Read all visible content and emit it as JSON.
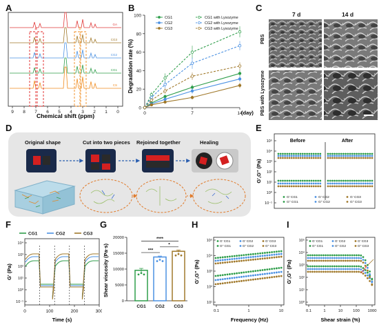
{
  "labels": {
    "A": "A",
    "B": "B",
    "C": "C",
    "D": "D",
    "E": "E",
    "F": "F",
    "G": "G",
    "H": "H",
    "I": "I"
  },
  "panelA": {
    "xlabel": "Chemical shift (ppm)",
    "xticks": [
      "9",
      "8",
      "7",
      "6",
      "5",
      "4",
      "3",
      "2",
      "1",
      "0"
    ],
    "ann1": "a",
    "ann2": "b",
    "traces": [
      {
        "name": "GA",
        "color": "#e03a3a"
      },
      {
        "name": "CG3",
        "color": "#a0782a"
      },
      {
        "name": "CG2",
        "color": "#4a90e2"
      },
      {
        "name": "CG1",
        "color": "#2e9d4a"
      },
      {
        "name": "CS",
        "color": "#f08a1c"
      }
    ]
  },
  "panelB": {
    "chart_data": {
      "type": "line",
      "x": [
        0,
        1,
        3,
        7,
        14
      ],
      "xticks": [
        "0",
        "7",
        "14"
      ],
      "xunit": "(day)",
      "ylabel": "Degradation rate (%)",
      "ylim": [
        0,
        100
      ],
      "yticks": [
        "0",
        "20",
        "40",
        "60",
        "80",
        "100"
      ],
      "series": [
        {
          "name": "CG1",
          "color": "#2e9d4a",
          "dashed": false,
          "values": [
            0,
            5,
            12,
            22,
            37
          ],
          "err": [
            0,
            1,
            2,
            3,
            4
          ]
        },
        {
          "name": "CG2",
          "color": "#4a90e2",
          "dashed": false,
          "values": [
            0,
            4,
            9,
            18,
            31
          ],
          "err": [
            0,
            1,
            2,
            3,
            3
          ]
        },
        {
          "name": "CG3",
          "color": "#a0782a",
          "dashed": false,
          "values": [
            0,
            3,
            6,
            11,
            24
          ],
          "err": [
            0,
            1,
            1,
            2,
            3
          ]
        },
        {
          "name": "CG1 with Lysozyme",
          "color": "#2e9d4a",
          "dashed": true,
          "values": [
            0,
            14,
            32,
            60,
            82
          ],
          "err": [
            0,
            3,
            5,
            7,
            6
          ]
        },
        {
          "name": "CG2 with Lysozyme",
          "color": "#4a90e2",
          "dashed": true,
          "values": [
            0,
            11,
            25,
            48,
            67
          ],
          "err": [
            0,
            2,
            4,
            6,
            5
          ]
        },
        {
          "name": "CG3 with Lysozyme",
          "color": "#a0782a",
          "dashed": true,
          "values": [
            0,
            8,
            18,
            34,
            45
          ],
          "err": [
            0,
            2,
            3,
            4,
            4
          ]
        }
      ]
    }
  },
  "panelC": {
    "col1": "7 d",
    "col2": "14 d",
    "row1": "PBS",
    "row2": "PBS with Lysozyme"
  },
  "panelD": {
    "steps": [
      "Original shape",
      "Cut into two pieces",
      "Rejoined together",
      "Healing"
    ]
  },
  "panelE": {
    "ylabel": "G',G'' (Pa)",
    "before": "Before",
    "after": "After",
    "yticks": [
      "10⁵",
      "10⁴",
      "10³",
      "10²",
      "10¹",
      "10⁰",
      "10⁻¹"
    ],
    "legend": [
      "G' CG1",
      "G' CG2",
      "G' CG3",
      "G'' CG1",
      "G'' CG2",
      "G'' CG3"
    ]
  },
  "panelF": {
    "ylabel": "G' (Pa)",
    "xlabel": "Time (s)",
    "xticks": [
      "0",
      "100",
      "200",
      "300"
    ],
    "yticks": [
      "10⁴",
      "10³",
      "10²",
      "10¹",
      "10⁰",
      "10⁻¹"
    ],
    "legend": [
      "CG1",
      "CG2",
      "CG3"
    ],
    "colors": [
      "#2e9d4a",
      "#4a90e2",
      "#a0782a"
    ]
  },
  "panelG": {
    "chart_data": {
      "type": "bar",
      "categories": [
        "CG1",
        "CG2",
        "CG3"
      ],
      "values": [
        9600,
        13800,
        15600
      ],
      "err": [
        600,
        300,
        400
      ],
      "colors": [
        "#2e9d4a",
        "#4a90e2",
        "#a0782a"
      ],
      "ylabel": "Shear viscosity (Pa·s)",
      "ylim": [
        0,
        20000
      ],
      "yticks": [
        "0",
        "5000",
        "10000",
        "15000",
        "20000"
      ],
      "sig": [
        "***",
        "*",
        "****"
      ]
    }
  },
  "panelH": {
    "ylabel": "G',G'' (Pa)",
    "xlabel": "Frequency (Hz)",
    "xticks": [
      "0.1",
      "1",
      "10"
    ],
    "yticks": [
      "10⁵",
      "10⁴",
      "10³",
      "10²",
      "10¹"
    ],
    "legend": [
      "G' CG1",
      "G' CG2",
      "G' CG3",
      "G'' CG1",
      "G'' CG2",
      "G'' CG3"
    ]
  },
  "panelI": {
    "ylabel": "G',G'' (Pa)",
    "xlabel": "Shear strain (%)",
    "xticks": [
      "0.1",
      "1",
      "10",
      "100",
      "1000"
    ],
    "yticks": [
      "10⁵",
      "10⁴",
      "10³",
      "10²",
      "10¹",
      "10⁰"
    ],
    "legend": [
      "G' CG1",
      "G' CG2",
      "G' CG3",
      "G'' CG1",
      "G'' CG2",
      "G'' CG3"
    ]
  }
}
